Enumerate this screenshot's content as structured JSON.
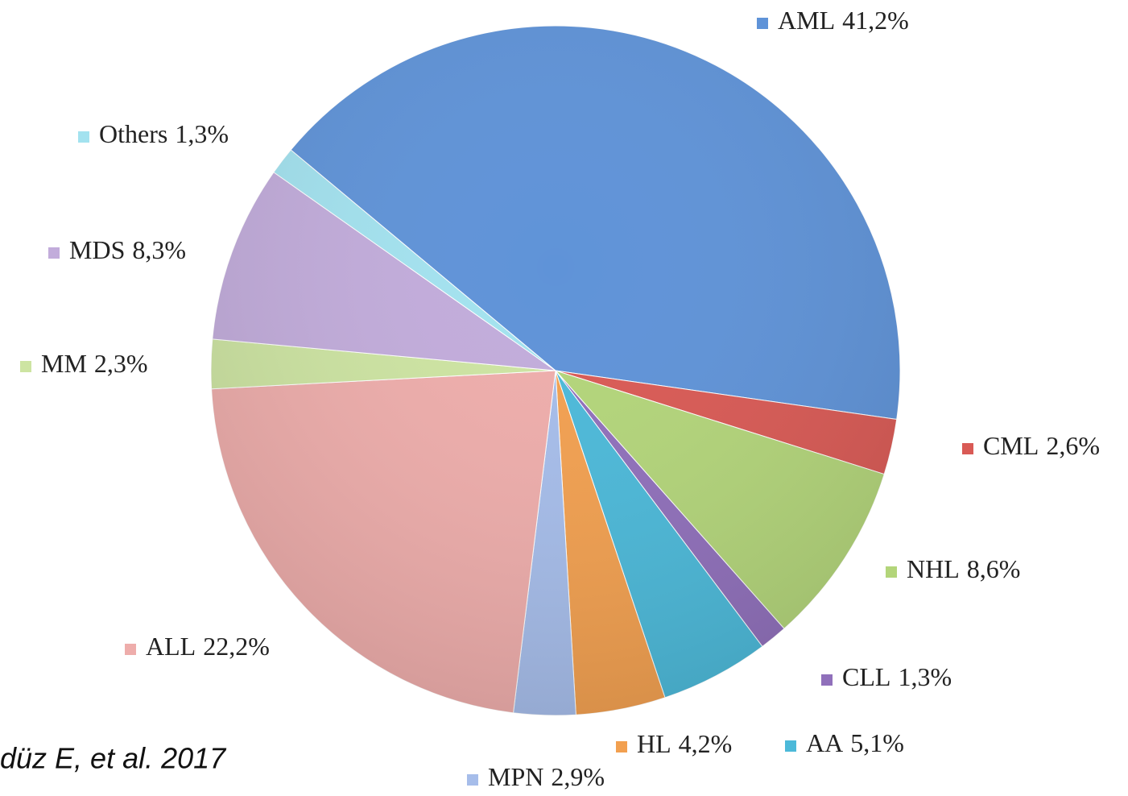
{
  "chart_data": {
    "type": "pie",
    "categories": [
      "AML",
      "CML",
      "NHL",
      "CLL",
      "AA",
      "HL",
      "MPN",
      "ALL",
      "MM",
      "MDS",
      "Others"
    ],
    "values": [
      41.2,
      2.6,
      8.6,
      1.3,
      5.1,
      4.2,
      2.9,
      22.2,
      2.3,
      8.3,
      1.3
    ],
    "value_labels": [
      "41,2%",
      "2,6%",
      "8,6%",
      "1,3%",
      "5,1%",
      "4,2%",
      "2,9%",
      "22,2%",
      "2,3%",
      "8,3%",
      "1,3%"
    ],
    "colors": [
      "#5f93d8",
      "#d95a55",
      "#b3d57a",
      "#9070bb",
      "#4cb9d9",
      "#f2a050",
      "#a6bdea",
      "#eeadab",
      "#cde4a2",
      "#c2acdb",
      "#a3e2ef"
    ],
    "annotation": "düz E, et al. 2017"
  }
}
